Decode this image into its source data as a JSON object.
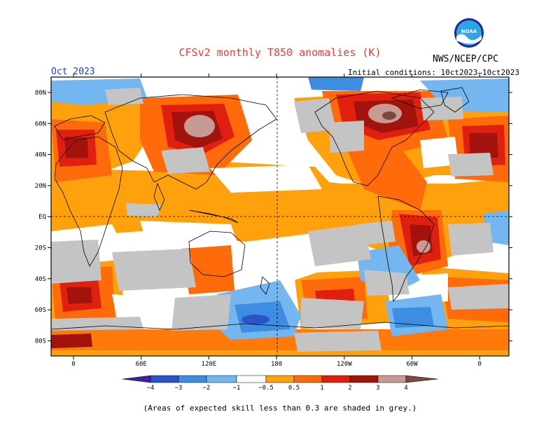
{
  "header": {
    "title": "CFSv2 monthly T850 anomalies (K)",
    "agency": "NWS/NCEP/CPC",
    "logo_text": "NOAA",
    "month": "Oct 2023",
    "initial_conditions": "Initial conditions: 10ct2023—10ct2023"
  },
  "axes": {
    "lat_labels": [
      "80N",
      "60N",
      "40N",
      "20N",
      "EQ",
      "20S",
      "40S",
      "60S",
      "80S"
    ],
    "lon_labels": [
      "0",
      "60E",
      "120E",
      "180",
      "120W",
      "60W",
      "0"
    ]
  },
  "colorbar": {
    "ticks": [
      "−4",
      "−3",
      "−2",
      "−1",
      "−0.5",
      "0.5",
      "1",
      "2",
      "3",
      "4"
    ],
    "colors": [
      "#3d1fa8",
      "#2a55c8",
      "#3d8de3",
      "#74b6f0",
      "#ffffff",
      "#ffa10d",
      "#ff6a0a",
      "#e0200e",
      "#a3130e",
      "#c79b94",
      "#7a4a42"
    ]
  },
  "footnote": "(Areas of expected skill less than 0.3 are shaded in grey.)",
  "colors": {
    "grey": "#c4c4c4",
    "orange": "#ffa10d",
    "orange_red": "#ff6a0a",
    "red": "#e0200e",
    "dark_red": "#a3130e",
    "light_blue": "#74b6f0",
    "blue": "#3d8de3",
    "dark_blue": "#2a55c8"
  }
}
